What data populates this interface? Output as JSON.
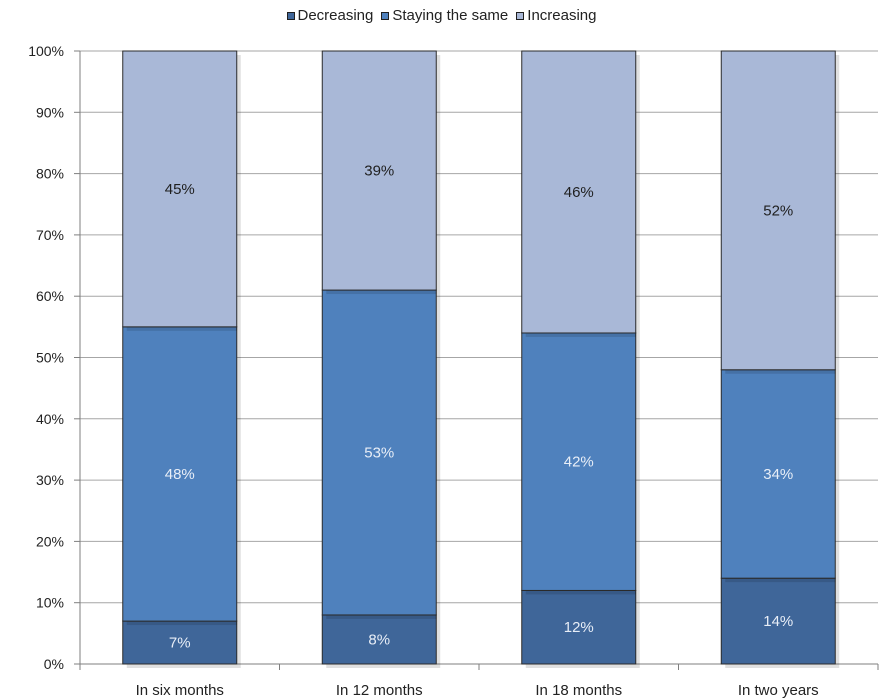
{
  "chart_data": {
    "type": "bar",
    "stacked": true,
    "percent_stacked": true,
    "categories": [
      "In six months",
      "In 12 months",
      "In 18 months",
      "In two years"
    ],
    "series": [
      {
        "name": "Decreasing",
        "values": [
          7,
          8,
          12,
          14
        ],
        "color": "#3F6699",
        "label_color": "#E8EEF7"
      },
      {
        "name": "Staying the same",
        "values": [
          48,
          53,
          42,
          34
        ],
        "color": "#4F81BD",
        "label_color": "#E8EEF7"
      },
      {
        "name": "Increasing",
        "values": [
          45,
          39,
          46,
          52
        ],
        "color": "#A9B8D7",
        "label_color": "#1F1F1F"
      }
    ],
    "data_labels": [
      [
        "7%",
        "8%",
        "12%",
        "14%"
      ],
      [
        "48%",
        "53%",
        "42%",
        "34%"
      ],
      [
        "45%",
        "39%",
        "46%",
        "52%"
      ]
    ],
    "y_ticks": [
      "0%",
      "10%",
      "20%",
      "30%",
      "40%",
      "50%",
      "60%",
      "70%",
      "80%",
      "90%",
      "100%"
    ],
    "ylim": [
      0,
      100
    ],
    "grid": true,
    "legend_position": "top-center",
    "gridline_color": "#A6A6A6",
    "bar_border_color": "#2B2B2B"
  }
}
